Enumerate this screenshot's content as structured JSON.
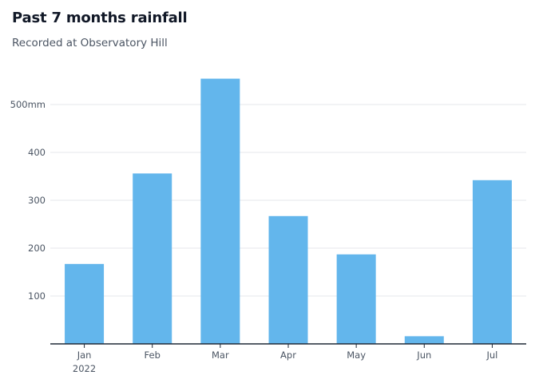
{
  "chart_data": {
    "type": "bar",
    "title": "Past 7 months rainfall",
    "subtitle": "Recorded at Observatory Hill",
    "categories": [
      "Jan",
      "Feb",
      "Mar",
      "Apr",
      "May",
      "Jun",
      "Jul"
    ],
    "category_sublabels": [
      "2022",
      "",
      "",
      "",
      "",
      "",
      ""
    ],
    "values": [
      167,
      356,
      554,
      267,
      187,
      16,
      342
    ],
    "y_ticks": [
      {
        "value": 100,
        "label": "100"
      },
      {
        "value": 200,
        "label": "200"
      },
      {
        "value": 300,
        "label": "300"
      },
      {
        "value": 400,
        "label": "400"
      },
      {
        "value": 500,
        "label": "500mm"
      }
    ],
    "ylim": [
      0,
      590
    ],
    "grid": true,
    "colors": {
      "bar": "#63b6ec",
      "grid": "#e5e7eb",
      "axis": "#1f2937"
    }
  }
}
